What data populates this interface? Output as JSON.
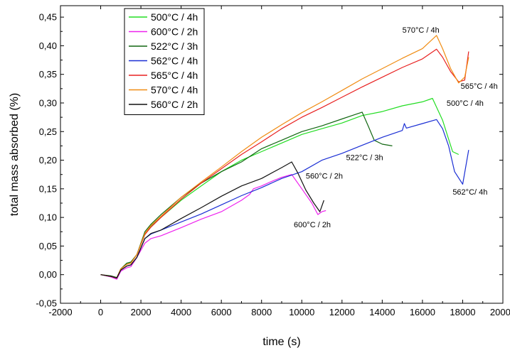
{
  "chart_data": {
    "type": "line",
    "title": "",
    "xlabel": "time (s)",
    "ylabel": "total mass absorbed (%)",
    "xlim": [
      -2000,
      20000
    ],
    "ylim": [
      -0.05,
      0.47
    ],
    "xticks": [
      -2000,
      0,
      2000,
      4000,
      6000,
      8000,
      10000,
      12000,
      14000,
      16000,
      18000,
      20000
    ],
    "xtick_labels": [
      "-2000",
      "0",
      "2000",
      "4000",
      "6000",
      "8000",
      "10000",
      "12000",
      "14000",
      "16000",
      "18000",
      "20000"
    ],
    "yticks": [
      -0.05,
      0.0,
      0.05,
      0.1,
      0.15,
      0.2,
      0.25,
      0.3,
      0.35,
      0.4,
      0.45
    ],
    "ytick_labels": [
      "-0,05",
      "0,00",
      "0,05",
      "0,10",
      "0,15",
      "0,20",
      "0,25",
      "0,30",
      "0,35",
      "0,40",
      "0,45"
    ],
    "grid": false,
    "legend_position": "top-left",
    "series": [
      {
        "name": "500°C / 4h",
        "color": "#22dd22",
        "x": [
          0,
          500,
          800,
          1000,
          1300,
          1500,
          1800,
          2200,
          2500,
          3000,
          4000,
          5000,
          6000,
          7000,
          8000,
          9000,
          10000,
          11000,
          12000,
          13000,
          14000,
          15000,
          16000,
          16500,
          17000,
          17500,
          17800
        ],
        "y": [
          0.0,
          -0.003,
          -0.006,
          0.01,
          0.02,
          0.022,
          0.035,
          0.07,
          0.085,
          0.1,
          0.13,
          0.155,
          0.18,
          0.2,
          0.215,
          0.23,
          0.245,
          0.255,
          0.265,
          0.278,
          0.285,
          0.295,
          0.302,
          0.308,
          0.27,
          0.215,
          0.21
        ]
      },
      {
        "name": "600°C / 2h",
        "color": "#ee22ee",
        "x": [
          0,
          500,
          800,
          1000,
          1300,
          1500,
          1800,
          2200,
          2500,
          3000,
          4000,
          5000,
          6000,
          7000,
          7400,
          7600,
          8000,
          8500,
          9000,
          9500,
          10000,
          10500,
          10800,
          11000,
          11200
        ],
        "y": [
          0.0,
          -0.004,
          -0.008,
          0.006,
          0.012,
          0.014,
          0.03,
          0.055,
          0.063,
          0.068,
          0.082,
          0.097,
          0.11,
          0.13,
          0.14,
          0.15,
          0.155,
          0.163,
          0.17,
          0.175,
          0.15,
          0.125,
          0.105,
          0.11,
          0.112
        ]
      },
      {
        "name": "522°C / 3h",
        "color": "#116611",
        "x": [
          0,
          500,
          800,
          1000,
          1300,
          1500,
          1800,
          2200,
          2500,
          3000,
          4000,
          5000,
          6000,
          7000,
          8000,
          9000,
          10000,
          11000,
          12000,
          12500,
          13000,
          13300,
          13600,
          14000,
          14500
        ],
        "y": [
          0.0,
          -0.002,
          -0.005,
          0.01,
          0.02,
          0.022,
          0.035,
          0.075,
          0.088,
          0.105,
          0.135,
          0.16,
          0.18,
          0.197,
          0.22,
          0.235,
          0.25,
          0.26,
          0.272,
          0.278,
          0.284,
          0.26,
          0.235,
          0.228,
          0.225
        ]
      },
      {
        "name": "562°C / 4h",
        "color": "#1a2ed4",
        "x": [
          0,
          500,
          800,
          1000,
          1300,
          1500,
          1800,
          2200,
          2500,
          3000,
          4000,
          5000,
          6000,
          7000,
          8000,
          9000,
          10000,
          11000,
          12000,
          13000,
          14000,
          15000,
          15100,
          15200,
          16000,
          16700,
          17000,
          17300,
          17600,
          18000,
          18300
        ],
        "y": [
          0.0,
          -0.003,
          -0.006,
          0.008,
          0.015,
          0.017,
          0.03,
          0.063,
          0.071,
          0.078,
          0.092,
          0.106,
          0.122,
          0.138,
          0.152,
          0.168,
          0.18,
          0.2,
          0.212,
          0.226,
          0.24,
          0.252,
          0.264,
          0.256,
          0.264,
          0.271,
          0.255,
          0.225,
          0.18,
          0.158,
          0.218
        ]
      },
      {
        "name": "565°C / 4h",
        "color": "#e82020",
        "x": [
          0,
          500,
          800,
          1000,
          1300,
          1500,
          1800,
          2200,
          2500,
          3000,
          4000,
          5000,
          6000,
          7000,
          8000,
          9000,
          10000,
          11000,
          12000,
          13000,
          14000,
          15000,
          16000,
          16700,
          17000,
          17400,
          17800,
          18100,
          18300
        ],
        "y": [
          0.0,
          -0.003,
          -0.006,
          0.01,
          0.018,
          0.02,
          0.035,
          0.07,
          0.083,
          0.1,
          0.132,
          0.16,
          0.185,
          0.21,
          0.232,
          0.255,
          0.275,
          0.292,
          0.31,
          0.328,
          0.345,
          0.362,
          0.377,
          0.394,
          0.38,
          0.355,
          0.337,
          0.34,
          0.39
        ]
      },
      {
        "name": "570°C / 4h",
        "color": "#f08c12",
        "x": [
          0,
          500,
          800,
          1000,
          1300,
          1500,
          1800,
          2200,
          2500,
          3000,
          4000,
          5000,
          6000,
          7000,
          8000,
          9000,
          10000,
          11000,
          12000,
          13000,
          14000,
          15000,
          16000,
          16700,
          17000,
          17400,
          17800,
          18100,
          18300
        ],
        "y": [
          0.0,
          -0.003,
          -0.006,
          0.01,
          0.018,
          0.02,
          0.035,
          0.072,
          0.086,
          0.102,
          0.135,
          0.162,
          0.188,
          0.215,
          0.24,
          0.262,
          0.283,
          0.302,
          0.322,
          0.342,
          0.36,
          0.378,
          0.395,
          0.418,
          0.395,
          0.36,
          0.335,
          0.345,
          0.38
        ]
      },
      {
        "name": "560°C / 2h",
        "color": "#111111",
        "x": [
          0,
          500,
          800,
          1000,
          1300,
          1500,
          1800,
          2200,
          2500,
          3000,
          4000,
          5000,
          6000,
          7000,
          8000,
          9000,
          9500,
          9800,
          10200,
          10600,
          10900,
          11100
        ],
        "y": [
          0.0,
          -0.003,
          -0.006,
          0.008,
          0.015,
          0.017,
          0.03,
          0.063,
          0.072,
          0.078,
          0.098,
          0.117,
          0.137,
          0.155,
          0.168,
          0.187,
          0.197,
          0.178,
          0.148,
          0.125,
          0.11,
          0.13
        ]
      }
    ],
    "annotations": [
      {
        "text": "570°C / 4h",
        "x": 15000,
        "y": 0.423,
        "anchor": "start"
      },
      {
        "text": "565°C / 4h",
        "x": 17900,
        "y": 0.325,
        "anchor": "start"
      },
      {
        "text": "500°C / 4h",
        "x": 17200,
        "y": 0.295,
        "anchor": "start"
      },
      {
        "text": "522°C / 3h",
        "x": 12200,
        "y": 0.2,
        "anchor": "start"
      },
      {
        "text": "560°C / 2h",
        "x": 10200,
        "y": 0.168,
        "anchor": "start"
      },
      {
        "text": "562°C/ 4h",
        "x": 17500,
        "y": 0.14,
        "anchor": "start"
      },
      {
        "text": "600°C / 2h",
        "x": 9600,
        "y": 0.083,
        "anchor": "start"
      }
    ]
  }
}
